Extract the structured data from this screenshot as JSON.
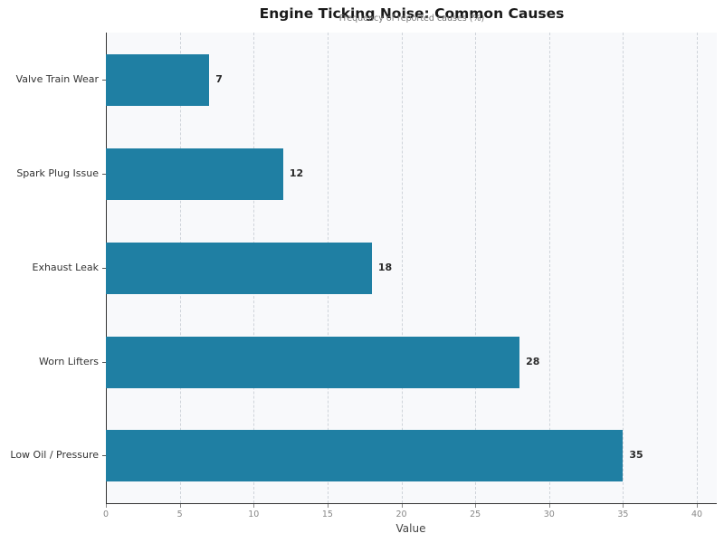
{
  "chart_data": {
    "type": "bar",
    "orientation": "horizontal",
    "title": "Engine Ticking Noise: Common Causes",
    "subtitle": "Frequency of reported causes (%)",
    "xlabel": "Value",
    "ylabel": "",
    "categories": [
      "Valve Train Wear",
      "Spark Plug Issue",
      "Exhaust Leak",
      "Worn Lifters",
      "Low Oil / Pressure"
    ],
    "values": [
      7,
      12,
      18,
      28,
      35
    ],
    "value_labels": [
      "7",
      "12",
      "18",
      "28",
      "35"
    ],
    "xlim": [
      0,
      41.3
    ],
    "xticks": [
      "0",
      "5",
      "10",
      "15",
      "20",
      "25",
      "30",
      "35",
      "40"
    ],
    "grid": "vertical dashed",
    "legend": "none",
    "bar_color": "#1f7fa3"
  }
}
